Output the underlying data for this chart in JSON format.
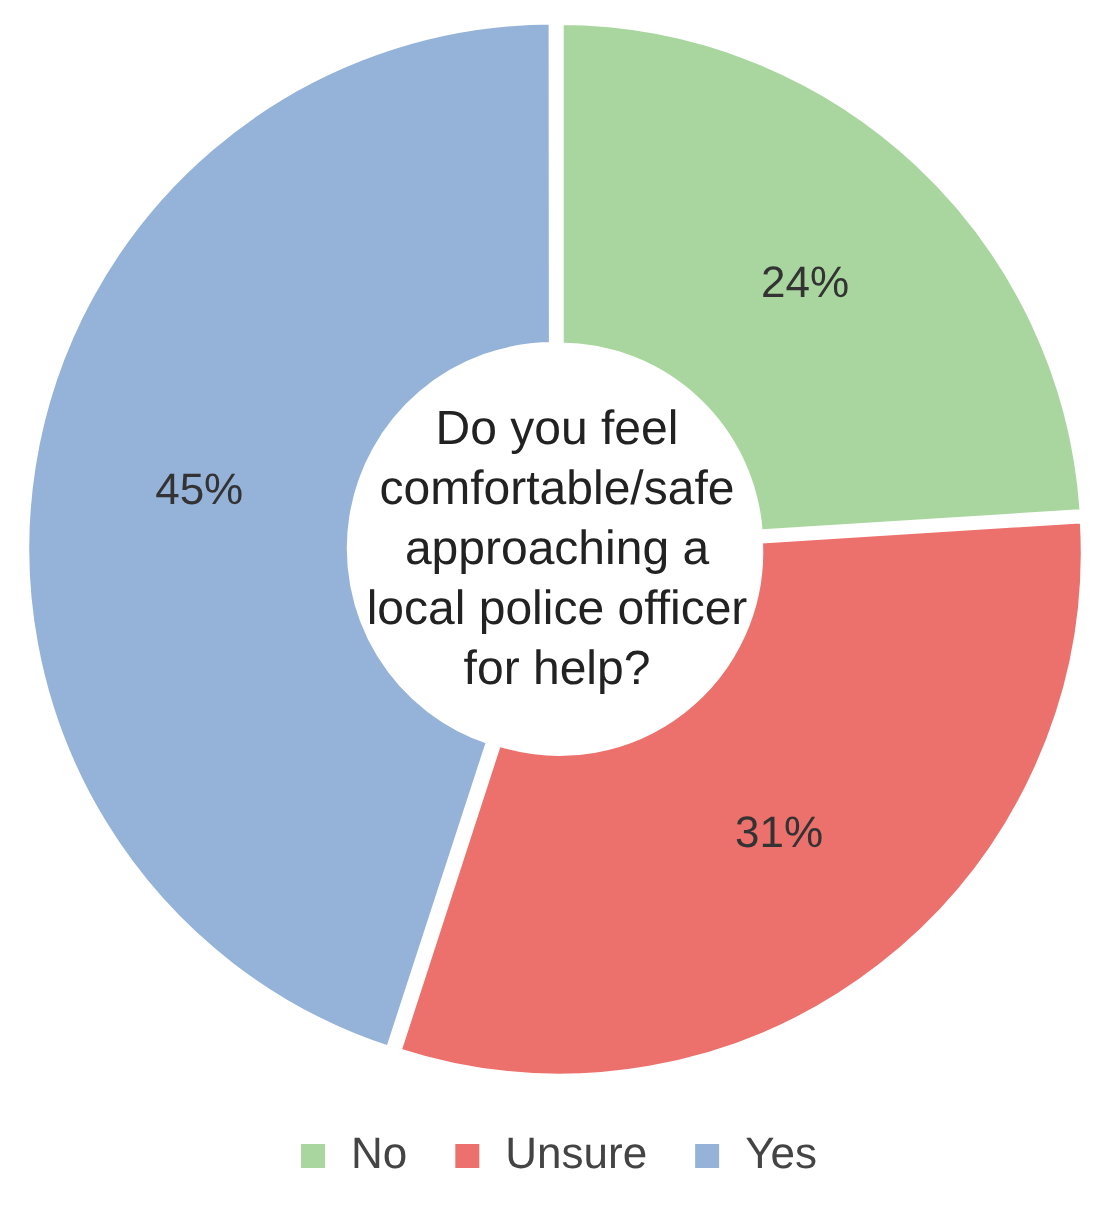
{
  "chart_data": {
    "type": "donut",
    "title": "Do you feel comfortable/safe approaching a local police officer for help?",
    "categories": [
      "No",
      "Unsure",
      "Yes"
    ],
    "values": [
      24,
      31,
      45
    ],
    "colors": [
      "#a9d69e",
      "#ec706c",
      "#95b2d8"
    ],
    "value_labels": [
      "24%",
      "31%",
      "45%"
    ],
    "legend": "bottom"
  }
}
